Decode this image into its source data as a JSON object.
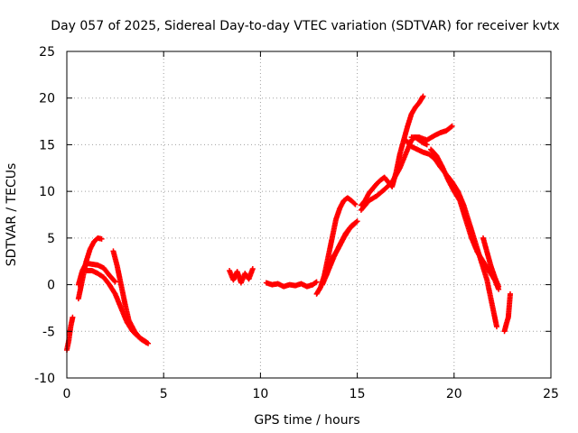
{
  "chart_data": {
    "type": "scatter",
    "title": "Day 057 of 2025, Sidereal Day-to-day VTEC variation (SDTVAR) for receiver kvtx",
    "xlabel": "GPS time / hours",
    "ylabel": "SDTVAR / TECUs",
    "xlim": [
      0,
      25
    ],
    "ylim": [
      -10,
      25
    ],
    "xticks": [
      0,
      5,
      10,
      15,
      20,
      25
    ],
    "yticks": [
      -10,
      -5,
      0,
      5,
      10,
      15,
      20,
      25
    ],
    "xtick_labels": [
      "0",
      "5",
      "10",
      "15",
      "20",
      "25"
    ],
    "ytick_labels": [
      "-10",
      "-5",
      "0",
      "5",
      "10",
      "15",
      "20",
      "25"
    ],
    "grid": true,
    "marker": "+",
    "series_color": "#ff0000",
    "series": [
      {
        "name": "s1",
        "x": [
          0.0,
          0.1,
          0.2,
          0.3
        ],
        "y": [
          -7.0,
          -6.0,
          -4.5,
          -3.5
        ]
      },
      {
        "name": "s2",
        "x": [
          0.6,
          0.8,
          1.0,
          1.2,
          1.4,
          1.6,
          1.8
        ],
        "y": [
          -1.5,
          0.5,
          2.5,
          3.8,
          4.6,
          5.0,
          4.9
        ]
      },
      {
        "name": "s3",
        "x": [
          0.6,
          0.8,
          1.0,
          1.3,
          1.6,
          1.9,
          2.2,
          2.5
        ],
        "y": [
          0.0,
          1.5,
          2.3,
          2.2,
          2.1,
          1.8,
          1.0,
          0.3
        ]
      },
      {
        "name": "s4",
        "x": [
          1.0,
          1.3,
          1.6,
          1.9,
          2.2,
          2.5,
          2.8,
          3.1,
          3.4,
          3.7,
          4.0,
          4.2
        ],
        "y": [
          1.5,
          1.5,
          1.2,
          0.8,
          0.0,
          -1.0,
          -2.5,
          -4.0,
          -5.0,
          -5.6,
          -6.0,
          -6.3
        ]
      },
      {
        "name": "s5",
        "x": [
          2.4,
          2.6,
          2.8,
          3.0,
          3.2,
          3.5,
          3.8,
          4.1
        ],
        "y": [
          3.6,
          2.0,
          0.0,
          -2.0,
          -3.8,
          -5.0,
          -5.8,
          -6.2
        ]
      },
      {
        "name": "s6",
        "x": [
          8.4,
          8.6,
          8.8,
          9.0,
          9.2,
          9.4,
          9.6
        ],
        "y": [
          1.5,
          0.5,
          1.4,
          0.2,
          1.2,
          0.6,
          1.7
        ]
      },
      {
        "name": "s7",
        "x": [
          10.3,
          10.6,
          10.9,
          11.2,
          11.5,
          11.8,
          12.1,
          12.4,
          12.7,
          12.9
        ],
        "y": [
          0.2,
          0.0,
          0.1,
          -0.2,
          0.0,
          -0.1,
          0.1,
          -0.2,
          0.0,
          0.3
        ]
      },
      {
        "name": "s8",
        "x": [
          12.9,
          13.1,
          13.3,
          13.5,
          13.7,
          13.9,
          14.1,
          14.3,
          14.5,
          14.7,
          14.9
        ],
        "y": [
          -1.0,
          -0.3,
          1.0,
          3.0,
          5.0,
          7.0,
          8.2,
          9.0,
          9.3,
          9.0,
          8.6
        ]
      },
      {
        "name": "s9",
        "x": [
          13.2,
          13.5,
          13.8,
          14.1,
          14.4,
          14.7,
          15.0
        ],
        "y": [
          0.0,
          1.5,
          3.0,
          4.3,
          5.5,
          6.3,
          6.8
        ]
      },
      {
        "name": "s10",
        "x": [
          13.4,
          13.7,
          14.0,
          14.3,
          14.6,
          14.9
        ],
        "y": [
          1.0,
          2.8,
          3.8,
          5.0,
          6.0,
          6.6
        ]
      },
      {
        "name": "s11",
        "x": [
          15.2,
          15.4,
          15.6,
          15.8,
          16.0,
          16.2,
          16.4,
          16.6,
          16.8,
          17.0,
          17.2,
          17.4,
          17.6,
          17.8,
          18.0,
          18.2,
          18.4
        ],
        "y": [
          8.5,
          9.0,
          9.8,
          10.3,
          10.8,
          11.2,
          11.5,
          11.0,
          10.5,
          12.0,
          14.0,
          15.5,
          17.0,
          18.3,
          19.0,
          19.5,
          20.2
        ]
      },
      {
        "name": "s12",
        "x": [
          15.2,
          15.6,
          16.0,
          16.4,
          16.8,
          17.2,
          17.6,
          17.8,
          18.0,
          18.2,
          18.4,
          18.6
        ],
        "y": [
          8.0,
          9.0,
          9.5,
          10.2,
          11.0,
          12.5,
          14.5,
          15.5,
          15.8,
          15.5,
          15.2,
          15.0
        ]
      },
      {
        "name": "s13",
        "x": [
          17.5,
          17.8,
          18.1,
          18.4,
          18.7,
          19.0,
          19.3,
          19.6,
          19.9,
          20.2,
          20.5,
          20.8,
          21.1,
          21.4,
          21.7,
          22.0,
          22.2
        ],
        "y": [
          15.5,
          14.8,
          14.5,
          14.2,
          14.0,
          13.5,
          12.6,
          11.8,
          11.0,
          10.0,
          8.5,
          6.5,
          4.5,
          2.5,
          0.5,
          -2.5,
          -4.5
        ]
      },
      {
        "name": "s14",
        "x": [
          17.8,
          18.2,
          18.6,
          19.0,
          19.3,
          19.6,
          19.9
        ],
        "y": [
          15.8,
          15.8,
          15.5,
          16.0,
          16.3,
          16.5,
          17.0
        ]
      },
      {
        "name": "s15",
        "x": [
          18.8,
          19.1,
          19.4,
          19.7,
          20.0,
          20.3,
          20.6,
          20.9,
          21.2,
          21.5,
          21.8,
          22.1,
          22.3
        ],
        "y": [
          14.5,
          13.8,
          12.6,
          11.2,
          10.0,
          9.0,
          7.0,
          5.0,
          3.5,
          2.5,
          1.5,
          0.5,
          -0.5
        ]
      },
      {
        "name": "s16",
        "x": [
          21.5,
          21.7,
          21.9,
          22.1,
          22.3
        ],
        "y": [
          5.0,
          3.5,
          2.0,
          0.8,
          -0.2
        ]
      },
      {
        "name": "s17",
        "x": [
          22.6,
          22.7,
          22.8,
          22.9
        ],
        "y": [
          -5.0,
          -4.2,
          -3.5,
          -1.0
        ]
      }
    ]
  }
}
